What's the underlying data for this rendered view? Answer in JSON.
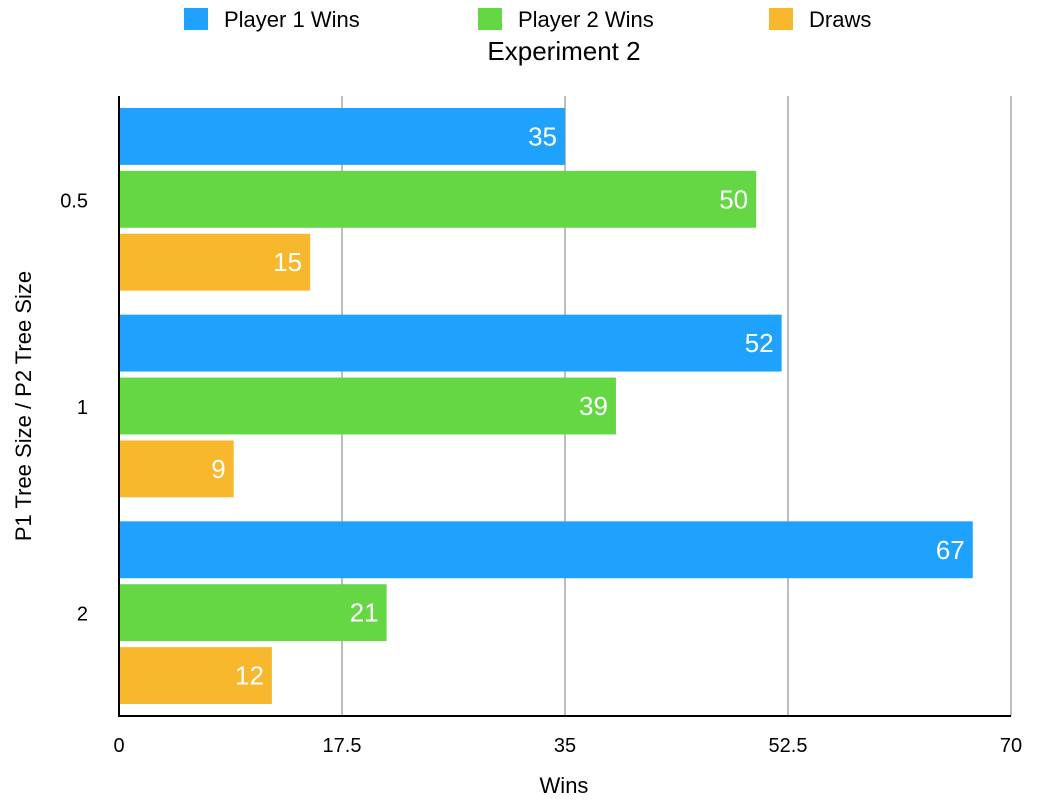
{
  "chart_data": {
    "type": "bar",
    "orientation": "horizontal",
    "title": "Experiment 2",
    "xlabel": "Wins",
    "ylabel": "P1 Tree Size / P2 Tree Size",
    "categories": [
      "0.5",
      "1",
      "2"
    ],
    "series": [
      {
        "name": "Player 1 Wins",
        "color": "#1fa2fd",
        "values": [
          35,
          52,
          67
        ]
      },
      {
        "name": "Player 2 Wins",
        "color": "#65d745",
        "values": [
          50,
          39,
          21
        ]
      },
      {
        "name": "Draws",
        "color": "#f7b82e",
        "values": [
          15,
          9,
          12
        ]
      }
    ],
    "xlim": [
      0,
      70
    ],
    "xticks": [
      "0",
      "17.5",
      "35",
      "52.5",
      "70"
    ],
    "xtick_values": [
      0,
      17.5,
      35,
      52.5,
      70
    ],
    "grid": true,
    "legend_position": "top",
    "data_labels": true
  }
}
